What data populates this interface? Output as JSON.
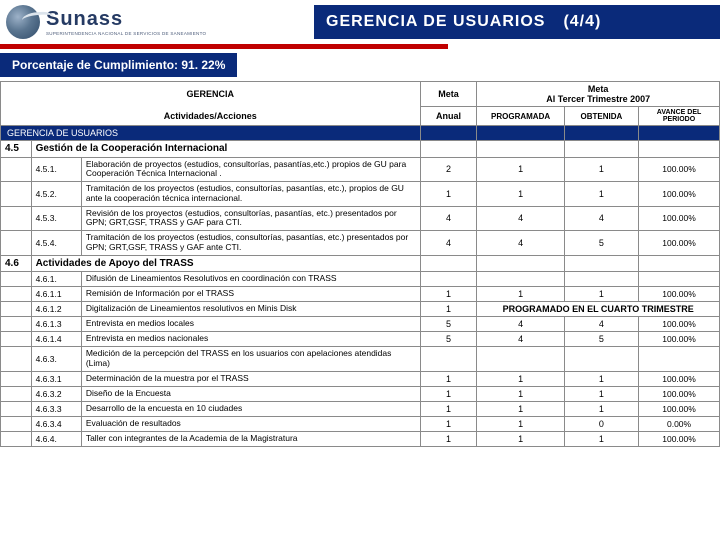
{
  "brand": {
    "name": "Sunass",
    "tagline": "SUPERINTENDENCIA NACIONAL DE SERVICIOS DE SANEAMIENTO"
  },
  "header": {
    "title": "GERENCIA DE USUARIOS",
    "page": "(4/4)"
  },
  "compliance": {
    "label": "Porcentaje de Cumplimiento: 91. 22%"
  },
  "table": {
    "head": {
      "gerencia": "GERENCIA",
      "actividades": "Actividades/Acciones",
      "meta": "Meta",
      "anual": "Anual",
      "metaTrim": "Meta\nAl Tercer Trimestre 2007",
      "programada": "PROGRAMADA",
      "obtenida": "OBTENIDA",
      "avance": "AVANCE DEL PERIODO"
    },
    "sectionTitle": "GERENCIA DE USUARIOS",
    "groups": [
      {
        "code": "4.5",
        "title": "Gestión de la Cooperación Internacional",
        "rows": [
          {
            "code": "4.5.1.",
            "desc": "Elaboración de proyectos (estudios, consultorías, pasantías,etc.) propios de GU para Cooperación Técnica Internacional .",
            "anual": "2",
            "prog": "1",
            "obt": "1",
            "pct": "100.00%"
          },
          {
            "code": "4.5.2.",
            "desc": "Tramitación de los proyectos (estudios, consultorías, pasantías, etc.), propios de GU ante la cooperación técnica internacional.",
            "anual": "1",
            "prog": "1",
            "obt": "1",
            "pct": "100.00%"
          },
          {
            "code": "4.5.3.",
            "desc": "Revisión de los proyectos (estudios, consultorías, pasantías, etc.) presentados por GPN; GRT,GSF, TRASS y GAF para CTI.",
            "anual": "4",
            "prog": "4",
            "obt": "4",
            "pct": "100.00%"
          },
          {
            "code": "4.5.4.",
            "desc": "Tramitación de los proyectos (estudios, consultorías, pasantías, etc.) presentados por GPN; GRT,GSF, TRASS y GAF ante CTI.",
            "anual": "4",
            "prog": "4",
            "obt": "5",
            "pct": "100.00%"
          }
        ]
      },
      {
        "code": "4.6",
        "title": "Actividades de Apoyo del TRASS",
        "rows": [
          {
            "code": "4.6.1.",
            "desc": "Difusión de Lineamientos Resolutivos en coordinación con TRASS",
            "anual": "",
            "prog": "",
            "obt": "",
            "pct": ""
          },
          {
            "code": "4.6.1.1",
            "desc": "Remisión de Información por el TRASS",
            "anual": "1",
            "prog": "1",
            "obt": "1",
            "pct": "100.00%"
          },
          {
            "code": "4.6.1.2",
            "desc": "Digitalización de Lineamientos resolutivos en Minis Disk",
            "anual": "1",
            "prog": "MERGED",
            "obt": "",
            "pct": ""
          },
          {
            "code": "4.6.1.3",
            "desc": "Entrevista en medios locales",
            "anual": "5",
            "prog": "4",
            "obt": "4",
            "pct": "100.00%"
          },
          {
            "code": "4.6.1.4",
            "desc": "Entrevista en medios nacionales",
            "anual": "5",
            "prog": "4",
            "obt": "5",
            "pct": "100.00%"
          },
          {
            "code": "4.6.3.",
            "desc": "Medición de la percepción del TRASS en los usuarios con apelaciones atendidas (Lima)",
            "anual": "",
            "prog": "",
            "obt": "",
            "pct": ""
          },
          {
            "code": "4.6.3.1",
            "desc": "Determinación de la muestra por el TRASS",
            "anual": "1",
            "prog": "1",
            "obt": "1",
            "pct": "100.00%"
          },
          {
            "code": "4.6.3.2",
            "desc": "Diseño de la Encuesta",
            "anual": "1",
            "prog": "1",
            "obt": "1",
            "pct": "100.00%"
          },
          {
            "code": "4.6.3.3",
            "desc": "Desarrollo de la encuesta  en 10 ciudades",
            "anual": "1",
            "prog": "1",
            "obt": "1",
            "pct": "100.00%"
          },
          {
            "code": "4.6.3.4",
            "desc": "Evaluación de resultados",
            "anual": "1",
            "prog": "1",
            "obt": "0",
            "pct": "0.00%"
          },
          {
            "code": "4.6.4.",
            "desc": "Taller con integrantes de la Academia de la Magistratura",
            "anual": "1",
            "prog": "1",
            "obt": "1",
            "pct": "100.00%"
          }
        ]
      }
    ],
    "mergedNote": "PROGRAMADO EN EL CUARTO TRIMESTRE"
  },
  "colors": {
    "navy": "#0a2a7a",
    "red": "#c00000",
    "border": "#8a8a8a"
  }
}
